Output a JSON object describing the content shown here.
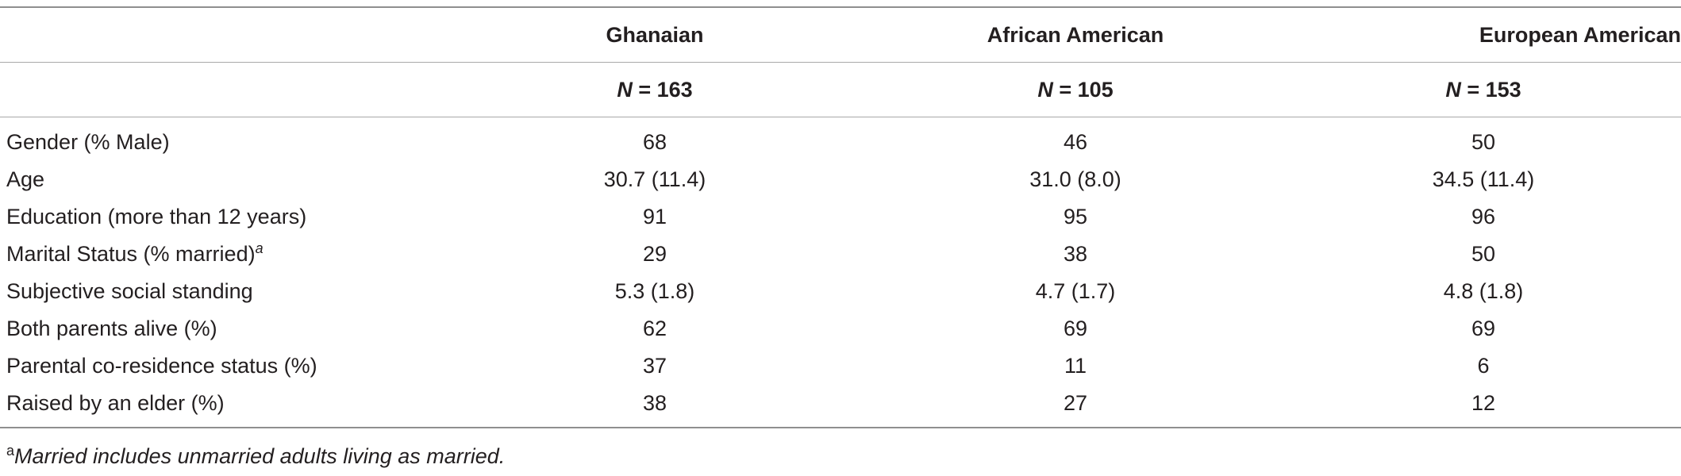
{
  "table": {
    "columns": [
      "",
      "Ghanaian",
      "African American",
      "European American"
    ],
    "sample_sizes": [
      {
        "n_label": "N",
        "eq": " = 163"
      },
      {
        "n_label": "N",
        "eq": " = 105"
      },
      {
        "n_label": "N",
        "eq": " = 153"
      }
    ],
    "rows": [
      {
        "label": "Gender (% Male)",
        "values": [
          "68",
          "46",
          "50"
        ]
      },
      {
        "label": "Age",
        "values": [
          "30.7 (11.4)",
          "31.0 (8.0)",
          "34.5 (11.4)"
        ]
      },
      {
        "label": "Education (more than 12 years)",
        "values": [
          "91",
          "95",
          "96"
        ]
      },
      {
        "label": "Marital Status (% married)",
        "label_sup": "a",
        "values": [
          "29",
          "38",
          "50"
        ]
      },
      {
        "label": "Subjective social standing",
        "values": [
          "5.3 (1.8)",
          "4.7 (1.7)",
          "4.8 (1.8)"
        ]
      },
      {
        "label": "Both parents alive (%)",
        "values": [
          "62",
          "69",
          "69"
        ]
      },
      {
        "label": "Parental co-residence status (%)",
        "values": [
          "37",
          "11",
          "6"
        ]
      },
      {
        "label": "Raised by an elder (%)",
        "values": [
          "38",
          "27",
          "12"
        ]
      }
    ]
  },
  "footnote": {
    "marker": "a",
    "text": "Married includes unmarried adults living as married."
  }
}
